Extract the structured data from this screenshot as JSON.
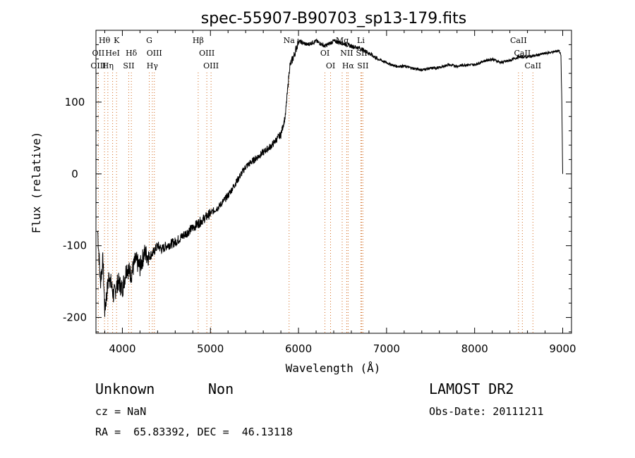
{
  "chart_data": {
    "type": "line",
    "title": "spec-55907-B90703_sp13-179.fits",
    "xlabel": "Wavelength (Å)",
    "ylabel": "Flux (relative)",
    "xlim": [
      3700,
      9100
    ],
    "ylim": [
      -222,
      200
    ],
    "x_ticks": [
      4000,
      5000,
      6000,
      7000,
      8000,
      9000
    ],
    "y_ticks": [
      -200,
      -100,
      0,
      100
    ],
    "grid": false,
    "series": [
      {
        "x": [
          3720,
          3750,
          3780,
          3800,
          3850,
          3900,
          3950,
          4000,
          4050,
          4100,
          4150,
          4200,
          4250,
          4300,
          4350,
          4400,
          4450,
          4500,
          4600,
          4700,
          4800,
          4900,
          5000,
          5100,
          5200,
          5300,
          5400,
          5500,
          5600,
          5700,
          5750,
          5800,
          5850,
          5900,
          5950,
          6000,
          6100,
          6200,
          6300,
          6400,
          6500,
          6600,
          6700,
          6800,
          6900,
          7000,
          7100,
          7200,
          7300,
          7400,
          7500,
          7600,
          7700,
          7800,
          7900,
          8000,
          8100,
          8200,
          8300,
          8400,
          8500,
          8600,
          8700,
          8800,
          8900,
          8960,
          8980,
          8990,
          9000
        ],
        "y": [
          -80,
          -150,
          -120,
          -190,
          -140,
          -170,
          -150,
          -160,
          -130,
          -140,
          -120,
          -130,
          -110,
          -115,
          -110,
          -100,
          -105,
          -100,
          -95,
          -85,
          -75,
          -65,
          -55,
          -45,
          -30,
          -10,
          10,
          20,
          30,
          40,
          48,
          55,
          80,
          150,
          165,
          185,
          180,
          185,
          178,
          185,
          182,
          178,
          175,
          168,
          160,
          155,
          150,
          150,
          147,
          145,
          147,
          148,
          152,
          150,
          152,
          152,
          157,
          160,
          155,
          158,
          163,
          163,
          165,
          168,
          170,
          172,
          165,
          100,
          0
        ]
      }
    ],
    "line_markers": [
      {
        "label": "Hθ",
        "wavelength": 3797,
        "row": 0
      },
      {
        "label": "K",
        "wavelength": 3934,
        "row": 0
      },
      {
        "label": "G",
        "wavelength": 4305,
        "row": 0
      },
      {
        "label": "Hβ",
        "wavelength": 4861,
        "row": 0
      },
      {
        "label": "Na",
        "wavelength": 5893,
        "row": 0
      },
      {
        "label": "Mg",
        "wavelength": 6496,
        "row": 0
      },
      {
        "label": "Li",
        "wavelength": 6708,
        "row": 0
      },
      {
        "label": "CaII",
        "wavelength": 8498,
        "row": 0
      },
      {
        "label": "OII",
        "wavelength": 3727,
        "row": 1
      },
      {
        "label": "HeI",
        "wavelength": 3889,
        "row": 1
      },
      {
        "label": "Hδ",
        "wavelength": 4102,
        "row": 1
      },
      {
        "label": "OIII",
        "wavelength": 4363,
        "row": 1
      },
      {
        "label": "OIII",
        "wavelength": 4959,
        "row": 1
      },
      {
        "label": "OI",
        "wavelength": 6300,
        "row": 1
      },
      {
        "label": "NII",
        "wavelength": 6548,
        "row": 1
      },
      {
        "label": "SII",
        "wavelength": 6717,
        "row": 1
      },
      {
        "label": "CaII",
        "wavelength": 8542,
        "row": 1
      },
      {
        "label": "OIII",
        "wavelength": 3727,
        "row": 2
      },
      {
        "label": "Hη",
        "wavelength": 3835,
        "row": 2
      },
      {
        "label": "SII",
        "wavelength": 4072,
        "row": 2
      },
      {
        "label": "Hγ",
        "wavelength": 4340,
        "row": 2
      },
      {
        "label": "OIII",
        "wavelength": 5007,
        "row": 2
      },
      {
        "label": "OI",
        "wavelength": 6364,
        "row": 2
      },
      {
        "label": "Hα",
        "wavelength": 6563,
        "row": 2
      },
      {
        "label": "SII",
        "wavelength": 6731,
        "row": 2
      },
      {
        "label": "CaII",
        "wavelength": 8662,
        "row": 2
      }
    ]
  },
  "info": {
    "class_text": "Unknown",
    "subclass_text": "Non",
    "survey": "LAMOST DR2",
    "cz": "cz = NaN",
    "obs_date": "Obs-Date: 20111211",
    "coords": "RA =  65.83392, DEC =  46.13118"
  },
  "colors": {
    "spectrum": "#000000",
    "marker_line": "#d2691e"
  }
}
